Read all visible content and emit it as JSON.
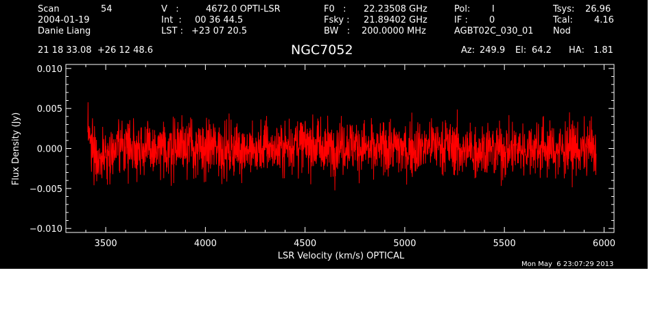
{
  "header": {
    "scan_label": "Scan",
    "scan_number": "54",
    "date": "2004-01-19",
    "observer": "Danie Liang",
    "v_label": "V   :",
    "v_value": "4672.0 OPTI-LSR",
    "int_label": "Int  :",
    "int_value": "00 36 44.5",
    "lst_label": "LST :",
    "lst_value": "+23 07 20.5",
    "f0_label": "F0   :",
    "f0_value": "22.23508 GHz",
    "fsky_label": "Fsky :",
    "fsky_value": "21.89402 GHz",
    "bw_label": "BW   :",
    "bw_value": "200.0000 MHz",
    "pol_label": "Pol:",
    "pol_value": "I",
    "if_label": "IF :",
    "if_value": "0",
    "project": "AGBT02C_030_01",
    "tsys_label": "Tsys:",
    "tsys_value": "26.96",
    "tcal_label": "Tcal:",
    "tcal_value": "4.16",
    "mode": "Nod",
    "coordinates": "21 18 33.08  +26 12 48.6",
    "source": "NGC7052",
    "az_label": "Az:",
    "az_value": "249.9",
    "el_label": "El:",
    "el_value": "64.2",
    "ha_label": "HA:",
    "ha_value": "1.81"
  },
  "footer": {
    "timestamp": "Mon May  6 23:07:29 2013"
  },
  "colors": {
    "background": "#000000",
    "foreground": "#ffffff",
    "series": "#ff0000"
  },
  "chart_data": {
    "type": "line",
    "title": "NGC7052",
    "xlabel": "LSR Velocity (km/s) OPTICAL",
    "ylabel": "Flux Density (Jy)",
    "xlim": [
      3300,
      6050
    ],
    "ylim": [
      -0.0105,
      0.0105
    ],
    "x_ticks": [
      3500,
      4000,
      4500,
      5000,
      5500,
      6000
    ],
    "x_tick_labels": [
      "3500",
      "4000",
      "4500",
      "5000",
      "5500",
      "6000"
    ],
    "y_ticks": [
      -0.01,
      -0.005,
      0.0,
      0.005,
      0.01
    ],
    "y_tick_labels": [
      "−0.010",
      "−0.005",
      "0.000",
      "0.005",
      "0.010"
    ],
    "grid": false,
    "series": [
      {
        "color": "#ff0000",
        "x_start": 3410,
        "x_end": 5960,
        "noise_rms": 0.0017,
        "y_min": -0.0068,
        "y_max": 0.0078,
        "x": [
          3410,
          3430,
          3450,
          3470,
          3500,
          3550,
          3600,
          3650,
          3700,
          3750,
          3800,
          3850,
          3900,
          3950,
          4000,
          4050,
          4100,
          4150,
          4200,
          4250,
          4300,
          4350,
          4400,
          4450,
          4500,
          4550,
          4600,
          4650,
          4700,
          4750,
          4800,
          4850,
          4900,
          4950,
          5000,
          5050,
          5100,
          5150,
          5200,
          5250,
          5300,
          5350,
          5400,
          5450,
          5500,
          5550,
          5600,
          5650,
          5700,
          5750,
          5800,
          5850,
          5900,
          5930,
          5960
        ],
        "y": [
          0.0013,
          0.0011,
          -0.0008,
          -0.0014,
          -0.0006,
          -0.0002,
          0.0006,
          0.0002,
          0.0001,
          -0.0006,
          -0.0002,
          0.0004,
          0.0008,
          -0.0002,
          -0.0003,
          0.0005,
          -0.0004,
          -0.0001,
          0.0002,
          -0.0005,
          0.0003,
          -0.0001,
          0.0001,
          0.0007,
          0.0004,
          0.0005,
          -0.0001,
          0.0002,
          0.0005,
          0.0004,
          0.0001,
          -0.0004,
          0.0002,
          0.0003,
          -0.0002,
          0.0001,
          0.0003,
          0.0006,
          0.0004,
          0.0001,
          -0.0004,
          -0.0002,
          0.0001,
          -0.0003,
          -0.0002,
          0.0,
          -0.0001,
          0.0003,
          0.0001,
          -0.0002,
          0.0,
          0.0001,
          -0.0003,
          0.0002,
          -0.0001
        ]
      }
    ]
  }
}
